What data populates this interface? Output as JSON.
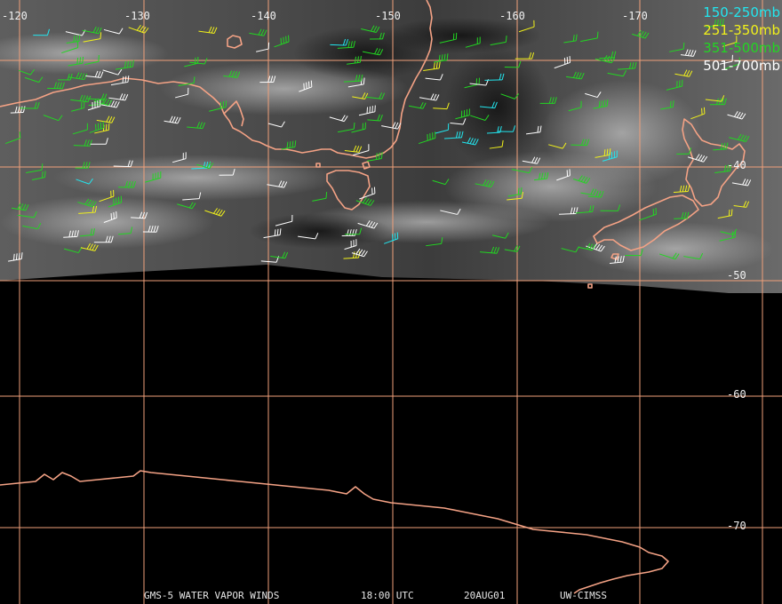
{
  "map": {
    "longitude_labels": [
      "-120",
      "-130",
      "-140",
      "-150",
      "-160",
      "-170"
    ],
    "latitude_labels": [
      "-40",
      "-50",
      "-60",
      "-70"
    ],
    "colors": {
      "background": "#000000",
      "grid": "#f0a07a",
      "coast": "#f4a285",
      "imagery_light": "#9a9a9a",
      "imagery_dark": "#2a2a2a"
    }
  },
  "legend": {
    "items": [
      {
        "label": "150-250mb",
        "color": "#22e6ef"
      },
      {
        "label": "251-350mb",
        "color": "#f2f21a"
      },
      {
        "label": "351-500mb",
        "color": "#22d622"
      },
      {
        "label": "501-700mb",
        "color": "#ffffff"
      }
    ]
  },
  "footer": {
    "product": "GMS-5 WATER VAPOR WINDS",
    "time": "18:00 UTC",
    "date": "20AUG01",
    "source": "UW-CIMSS"
  }
}
